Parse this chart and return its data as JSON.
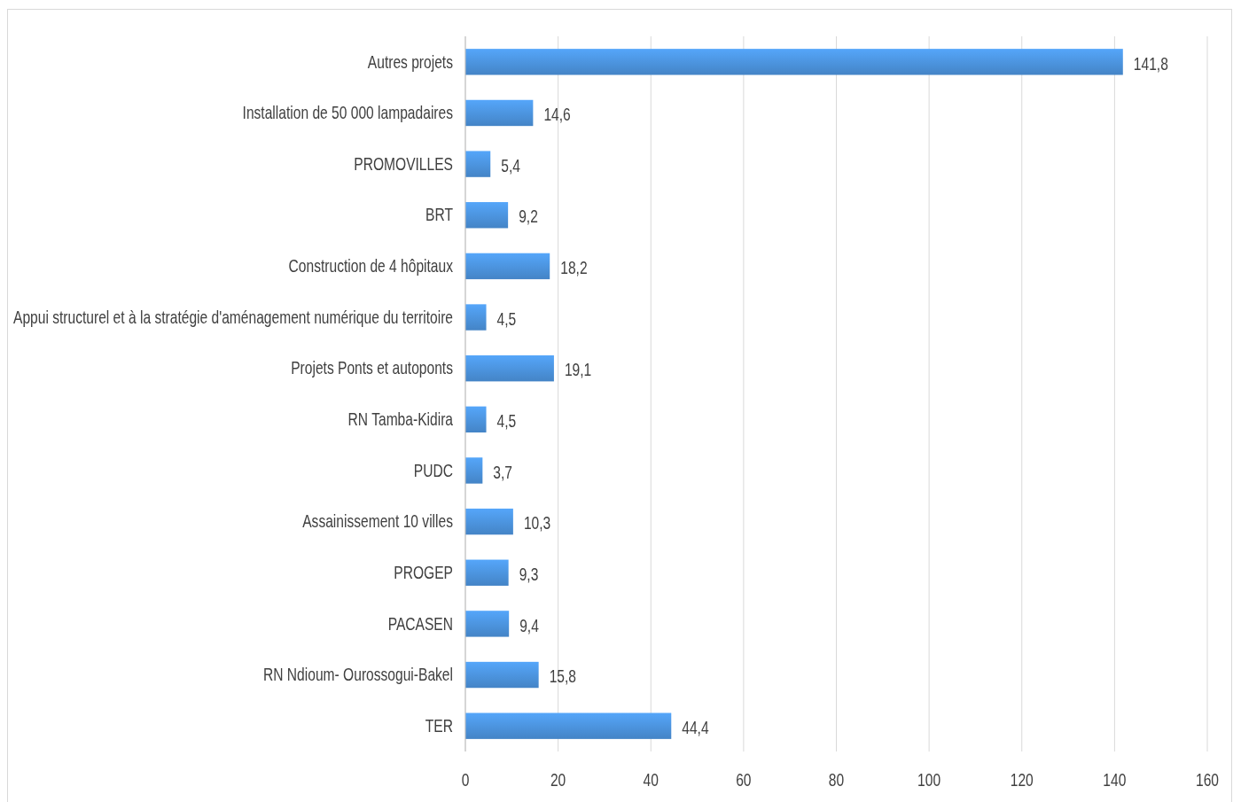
{
  "chart_data": {
    "type": "bar",
    "orientation": "horizontal",
    "categories": [
      "Autres projets",
      "Installation de 50 000 lampadaires",
      "PROMOVILLES",
      "BRT",
      "Construction de 4 hôpitaux",
      "Appui structurel et à la stratégie d'aménagement numérique du territoire",
      "Projets Ponts et autoponts",
      "RN Tamba-Kidira",
      "PUDC",
      "Assainissement 10 villes",
      "PROGEP",
      "PACASEN",
      "RN Ndioum- Ourossogui-Bakel",
      "TER"
    ],
    "values": [
      141.8,
      14.6,
      5.4,
      9.2,
      18.2,
      4.5,
      19.1,
      4.5,
      3.7,
      10.3,
      9.3,
      9.4,
      15.8,
      44.4
    ],
    "value_labels": [
      "141,8",
      "14,6",
      "5,4",
      "9,2",
      "18,2",
      "4,5",
      "19,1",
      "4,5",
      "3,7",
      "10,3",
      "9,3",
      "9,4",
      "15,8",
      "44,4"
    ],
    "color": "#4a90d9",
    "xlim": [
      0,
      160
    ],
    "xticks": [
      0,
      20,
      40,
      60,
      80,
      100,
      120,
      140,
      160
    ],
    "grid": "x"
  }
}
